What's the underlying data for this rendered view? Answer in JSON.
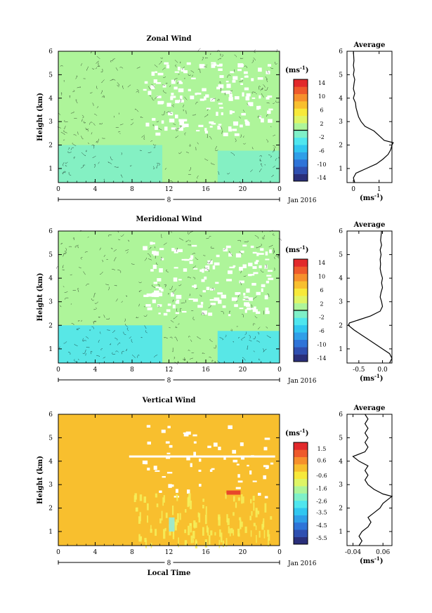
{
  "colors": {
    "white": "#ffffff",
    "black": "#000000",
    "ramp": [
      "#2a2f7a",
      "#2f4fb0",
      "#2f74d8",
      "#2f9fe8",
      "#31c7f0",
      "#4fe6ee",
      "#7ff0c8",
      "#aef59a",
      "#dff566",
      "#f7e93a",
      "#f8bf2e",
      "#f6902c",
      "#ee5a2b",
      "#e2292b"
    ]
  },
  "chart_data": [
    {
      "type": "heatmap",
      "title": "Zonal Wind",
      "ylabel": "Height (km)",
      "xlim": [
        0,
        24
      ],
      "ylim": [
        0.4,
        6
      ],
      "x_ticks": [
        "0",
        "4",
        "8",
        "12",
        "16",
        "20",
        "0"
      ],
      "y_ticks": [
        "1",
        "2",
        "3",
        "4",
        "5",
        "6"
      ],
      "day_label": "8",
      "date_label": "Jan 2016",
      "colorbar": {
        "unit_label": "(ms",
        "unit_exp": "-1",
        "unit_close": ")",
        "range": [
          -15,
          15
        ],
        "ticks": [
          "-14",
          "-10",
          "-6",
          "-2",
          "2",
          "6",
          "10",
          "14"
        ],
        "tick_values": [
          -14,
          -10,
          -6,
          -2,
          2,
          6,
          10,
          14
        ]
      },
      "dominant_value": 1.0,
      "lower_layer_value": -1.6,
      "lower_layer_top_km": 2.0,
      "average_profile": {
        "title": "Average",
        "x_ticks": [
          "0",
          "1"
        ],
        "x_tick_values": [
          0,
          1
        ],
        "xlim": [
          -0.25,
          1.5
        ],
        "xlabel": "(ms",
        "xlabel_exp": "-1",
        "xlabel_close": ")",
        "y_ticks": [
          "1",
          "2",
          "3",
          "4",
          "5",
          "6"
        ],
        "height_km": [
          0.4,
          0.6,
          0.8,
          1.0,
          1.2,
          1.4,
          1.6,
          1.8,
          2.0,
          2.1,
          2.2,
          2.4,
          2.6,
          2.8,
          3.0,
          3.2,
          3.4,
          3.6,
          3.8,
          4.0,
          4.2,
          4.4,
          4.6,
          4.8,
          5.0,
          5.2,
          5.4,
          5.6,
          5.8,
          6.0
        ],
        "value": [
          0.05,
          0.0,
          0.1,
          0.5,
          0.9,
          1.15,
          1.35,
          1.45,
          1.5,
          1.55,
          1.2,
          1.0,
          0.8,
          0.45,
          0.3,
          0.2,
          0.15,
          0.1,
          0.08,
          0.0,
          0.05,
          0.0,
          0.02,
          0.05,
          0.0,
          0.03,
          0.0,
          0.02,
          0.01,
          0.0
        ]
      }
    },
    {
      "type": "heatmap",
      "title": "Meridional Wind",
      "ylabel": "Height (km)",
      "xlim": [
        0,
        24
      ],
      "ylim": [
        0.4,
        6
      ],
      "x_ticks": [
        "0",
        "4",
        "8",
        "12",
        "16",
        "20",
        "0"
      ],
      "y_ticks": [
        "1",
        "2",
        "3",
        "4",
        "5",
        "6"
      ],
      "day_label": "8",
      "date_label": "Jan 2016",
      "colorbar": {
        "unit_label": "(ms",
        "unit_exp": "-1",
        "unit_close": ")",
        "range": [
          -15,
          15
        ],
        "ticks": [
          "-14",
          "-10",
          "-6",
          "-2",
          "2",
          "6",
          "10",
          "14"
        ],
        "tick_values": [
          -14,
          -10,
          -6,
          -2,
          2,
          6,
          10,
          14
        ]
      },
      "dominant_value": 1.0,
      "lower_layer_value": -2.5,
      "lower_layer_top_km": 2.0,
      "average_profile": {
        "title": "Average",
        "x_ticks": [
          "-0.5",
          "0.0"
        ],
        "x_tick_values": [
          -0.5,
          0.0
        ],
        "xlim": [
          -0.75,
          0.2
        ],
        "xlabel": "(ms",
        "xlabel_exp": "-1",
        "xlabel_close": ")",
        "y_ticks": [
          "1",
          "2",
          "3",
          "4",
          "5",
          "6"
        ],
        "height_km": [
          0.4,
          0.6,
          0.8,
          1.0,
          1.2,
          1.4,
          1.6,
          1.8,
          2.0,
          2.1,
          2.2,
          2.4,
          2.6,
          2.8,
          3.0,
          3.2,
          3.4,
          3.6,
          3.8,
          4.0,
          4.2,
          4.4,
          4.6,
          4.8,
          5.0,
          5.2,
          5.4,
          5.6,
          5.8,
          6.0
        ],
        "value": [
          0.15,
          0.2,
          0.15,
          0.0,
          -0.15,
          -0.3,
          -0.45,
          -0.6,
          -0.72,
          -0.7,
          -0.55,
          -0.25,
          -0.05,
          0.0,
          -0.02,
          -0.05,
          -0.03,
          0.0,
          -0.02,
          0.0,
          -0.03,
          -0.05,
          -0.04,
          -0.05,
          -0.03,
          -0.05,
          -0.02,
          -0.04,
          -0.03,
          -0.02
        ]
      }
    },
    {
      "type": "heatmap",
      "title": "Vertical Wind",
      "ylabel": "Height (km)",
      "xlabel": "Local Time",
      "xlim": [
        0,
        24
      ],
      "ylim": [
        0.4,
        6
      ],
      "x_ticks": [
        "0",
        "4",
        "8",
        "12",
        "16",
        "20",
        "0"
      ],
      "y_ticks": [
        "1",
        "2",
        "3",
        "4",
        "5",
        "6"
      ],
      "day_label": "8",
      "date_label": "Jan 2016",
      "colorbar": {
        "unit_label": "(ms",
        "unit_exp": "-1",
        "unit_close": ")",
        "range": [
          -6,
          2
        ],
        "ticks": [
          "-5.5",
          "-4.5",
          "-3.5",
          "-2.6",
          "-1.6",
          "-0.6",
          "0.6",
          "1.5"
        ],
        "tick_values": [
          -5.5,
          -4.5,
          -3.5,
          -2.6,
          -1.6,
          -0.6,
          0.6,
          1.5
        ]
      },
      "dominant_value": 0.0,
      "average_profile": {
        "title": "Average",
        "x_ticks": [
          "-0.04",
          "0.06"
        ],
        "x_tick_values": [
          -0.04,
          0.06
        ],
        "xlim": [
          -0.06,
          0.09
        ],
        "xlabel": "(ms",
        "xlabel_exp": "-1",
        "xlabel_close": ")",
        "y_ticks": [
          "1",
          "2",
          "3",
          "4",
          "5",
          "6"
        ],
        "height_km": [
          0.4,
          0.6,
          0.8,
          1.0,
          1.2,
          1.4,
          1.6,
          1.8,
          2.0,
          2.2,
          2.4,
          2.5,
          2.6,
          2.8,
          3.0,
          3.2,
          3.4,
          3.6,
          3.8,
          4.0,
          4.2,
          4.4,
          4.6,
          4.8,
          5.0,
          5.2,
          5.4,
          5.6,
          5.8,
          6.0
        ],
        "value": [
          -0.02,
          -0.01,
          -0.02,
          -0.01,
          0.01,
          0.02,
          0.01,
          0.03,
          0.05,
          0.06,
          0.08,
          0.09,
          0.06,
          0.03,
          0.01,
          0.0,
          0.01,
          0.0,
          0.01,
          -0.02,
          -0.04,
          0.0,
          0.01,
          0.0,
          0.01,
          0.0,
          0.01,
          0.0,
          0.01,
          0.0
        ]
      }
    }
  ]
}
